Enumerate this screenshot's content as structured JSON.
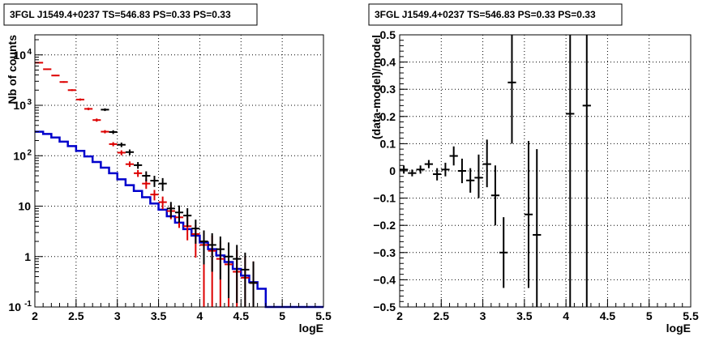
{
  "chart_data": [
    {
      "type": "line",
      "title": "3FGL J1549.4+0237 TS=546.83 PS=0.33 PS=0.33",
      "xlabel": "logE",
      "ylabel": "Nb of counts",
      "xlim": [
        2,
        5.5
      ],
      "ylim": [
        0.1,
        25000
      ],
      "yscale": "log",
      "grid": true,
      "xticks": [
        "2",
        "2.5",
        "3",
        "3.5",
        "4",
        "4.5",
        "5",
        "5.5"
      ],
      "yticks": [
        {
          "value": 0.1,
          "label": "10",
          "exp": "-1"
        },
        {
          "value": 1,
          "label": "1",
          "exp": ""
        },
        {
          "value": 10,
          "label": "10",
          "exp": ""
        },
        {
          "value": 100,
          "label": "10",
          "exp": "2"
        },
        {
          "value": 1000,
          "label": "10",
          "exp": "3"
        },
        {
          "value": 10000,
          "label": "10",
          "exp": "4"
        }
      ],
      "bin_edges": [
        2.0,
        2.1,
        2.2,
        2.3,
        2.4,
        2.5,
        2.6,
        2.7,
        2.8,
        2.9,
        3.0,
        3.1,
        3.2,
        3.3,
        3.4,
        3.5,
        3.6,
        3.7,
        3.8,
        3.9,
        4.0,
        4.1,
        4.2,
        4.3,
        4.4,
        4.5,
        4.6,
        4.7,
        4.8,
        4.9,
        5.0,
        5.1,
        5.2,
        5.3,
        5.4,
        5.5
      ],
      "series": [
        {
          "kind": "step",
          "color": "#0000cc",
          "values": [
            300,
            270,
            230,
            190,
            155,
            125,
            97,
            75,
            58,
            45,
            34,
            26,
            20,
            15,
            11.3,
            8.5,
            6.3,
            4.7,
            3.5,
            2.6,
            1.9,
            1.4,
            1.05,
            0.78,
            0.57,
            0.42,
            0.31,
            0.23,
            0.1,
            0.1,
            0.1,
            0.1,
            0.1,
            0.1,
            0.1
          ]
        },
        {
          "kind": "errorbars",
          "color": "#dd0000",
          "x": [
            2.05,
            2.15,
            2.25,
            2.35,
            2.45,
            2.55,
            2.65,
            2.75,
            2.85,
            2.95,
            3.05,
            3.15,
            3.25,
            3.35,
            3.45,
            3.55,
            3.65,
            3.75,
            3.85,
            3.95,
            4.05,
            4.15,
            4.25,
            4.35,
            4.45,
            4.55,
            4.65
          ],
          "y": [
            7000,
            5200,
            3900,
            2900,
            2000,
            1300,
            850,
            510,
            300,
            170,
            115,
            68,
            45,
            28,
            17,
            12,
            8,
            6,
            4,
            2.8,
            1.7,
            1.3,
            0.9,
            0.7,
            0.5,
            0.38,
            0.3
          ],
          "ylo": [
            6830,
            5060,
            3780,
            2800,
            1920,
            1235,
            800,
            473,
            278,
            154,
            102,
            60,
            38,
            22,
            13,
            8.7,
            5.5,
            3.7,
            2.1,
            0.95,
            0.1,
            0.1,
            0.1,
            0.1,
            0.1,
            0.1,
            0.1
          ],
          "yhi": [
            7170,
            5340,
            4020,
            3000,
            2080,
            1365,
            900,
            547,
            322,
            186,
            128,
            77,
            52,
            34,
            21,
            15.5,
            10.5,
            8.2,
            6.1,
            4.2,
            3.3,
            2.6,
            2.0,
            1.6,
            1.35,
            1.0,
            0.8
          ]
        },
        {
          "kind": "errorbars",
          "color": "#000000",
          "x": [
            2.85,
            2.95,
            3.05,
            3.15,
            3.25,
            3.35,
            3.45,
            3.55,
            3.65,
            3.75,
            3.85,
            3.95,
            4.05,
            4.15,
            4.25,
            4.35,
            4.45,
            4.55,
            4.65
          ],
          "y": [
            820,
            295,
            165,
            118,
            65,
            40,
            32,
            28,
            9,
            7.5,
            6.5,
            3.6,
            2.0,
            1.7,
            1.4,
            1.0,
            0.9,
            0.55,
            0.3
          ],
          "ylo": [
            770,
            270,
            148,
            103,
            55,
            31,
            24,
            20,
            5.9,
            4.7,
            3.9,
            1.8,
            0.7,
            0.5,
            0.35,
            0.15,
            0.12,
            0.1,
            0.1
          ],
          "yhi": [
            870,
            320,
            182,
            133,
            75,
            49,
            40,
            36,
            12.1,
            10.3,
            9.1,
            5.4,
            3.3,
            2.9,
            2.5,
            1.9,
            1.7,
            1.2,
            0.8
          ]
        }
      ]
    },
    {
      "type": "scatter",
      "title": "3FGL J1549.4+0237 TS=546.83 PS=0.33 PS=0.33",
      "xlabel": "logE",
      "ylabel": "(data-model)/model",
      "xlim": [
        2,
        5.5
      ],
      "ylim": [
        -0.5,
        0.5
      ],
      "grid": true,
      "xticks": [
        "2",
        "2.5",
        "3",
        "3.5",
        "4",
        "4.5",
        "5",
        "5.5"
      ],
      "yticks": [
        "−0.5",
        "−0.4",
        "−0.3",
        "−0.2",
        "−0.1",
        "0",
        "0.1",
        "0.2",
        "0.3",
        "0.4",
        "0.5"
      ],
      "series": [
        {
          "kind": "errorbars",
          "color": "#000000",
          "x": [
            2.05,
            2.15,
            2.25,
            2.35,
            2.45,
            2.55,
            2.65,
            2.75,
            2.85,
            2.95,
            3.05,
            3.15,
            3.25,
            3.35,
            3.55,
            3.65,
            4.05,
            4.25
          ],
          "y": [
            0.005,
            -0.008,
            0.005,
            0.025,
            -0.012,
            0.005,
            0.055,
            0.0,
            -0.035,
            -0.025,
            0.025,
            -0.09,
            -0.3,
            0.325,
            -0.16,
            -0.235,
            0.21,
            0.24
          ],
          "ylo": [
            -0.01,
            -0.02,
            -0.01,
            0.01,
            -0.035,
            -0.02,
            0.02,
            -0.045,
            -0.08,
            -0.1,
            -0.06,
            -0.2,
            -0.43,
            0.1,
            -0.43,
            -0.5,
            -0.5,
            -0.5
          ],
          "yhi": [
            0.02,
            0.005,
            0.02,
            0.04,
            0.01,
            0.03,
            0.09,
            0.045,
            0.01,
            0.06,
            0.115,
            0.02,
            -0.17,
            0.5,
            0.11,
            0.08,
            0.5,
            0.5
          ]
        }
      ]
    }
  ]
}
